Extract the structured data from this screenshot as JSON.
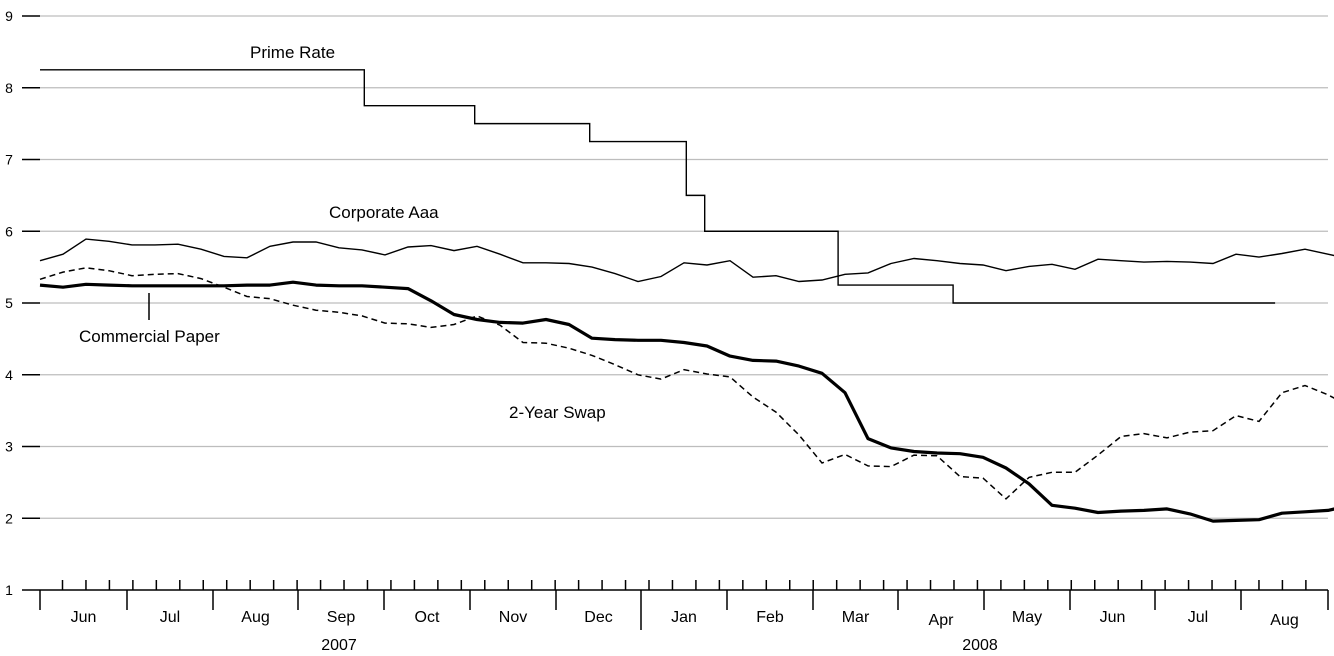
{
  "chart_data": {
    "type": "line",
    "title": "",
    "xlabel": "",
    "ylabel": "",
    "ylim": [
      1,
      9
    ],
    "yticks": [
      "1",
      "2",
      "3",
      "4",
      "5",
      "6",
      "7",
      "8",
      "9"
    ],
    "grid": "horizontal",
    "x_unit": "weeks from 2007-05-25 (weekly observations)",
    "month_labels": [
      "Jun",
      "Jul",
      "Aug",
      "Sep",
      "Oct",
      "Nov",
      "Dec",
      "Jan",
      "Feb",
      "Mar",
      "Apr",
      "May",
      "Jun",
      "Jul",
      "Aug"
    ],
    "year_labels": [
      "2007",
      "2008"
    ],
    "annotations": {
      "prime": "Prime Rate",
      "corporate": "Corporate Aaa",
      "commercial": "Commercial Paper",
      "swap": "2-Year Swap"
    },
    "series": [
      {
        "name": "Prime Rate",
        "style": "solid-thin",
        "steps": [
          {
            "x": 0,
            "y": 8.25
          },
          {
            "x": 14.1,
            "y": 7.75
          },
          {
            "x": 18.9,
            "y": 7.5
          },
          {
            "x": 23.9,
            "y": 7.25
          },
          {
            "x": 28.1,
            "y": 6.5
          },
          {
            "x": 28.9,
            "y": 6.0
          },
          {
            "x": 34.7,
            "y": 5.25
          },
          {
            "x": 39.7,
            "y": 5.0
          }
        ],
        "end_x": 53.7
      },
      {
        "name": "Corporate Aaa",
        "style": "solid-thin",
        "values": [
          5.59,
          5.68,
          5.89,
          5.86,
          5.81,
          5.81,
          5.82,
          5.75,
          5.65,
          5.63,
          5.79,
          5.85,
          5.85,
          5.77,
          5.74,
          5.67,
          5.78,
          5.8,
          5.73,
          5.79,
          5.68,
          5.56,
          5.56,
          5.55,
          5.5,
          5.41,
          5.3,
          5.37,
          5.56,
          5.53,
          5.59,
          5.36,
          5.38,
          5.3,
          5.32,
          5.4,
          5.42,
          5.55,
          5.62,
          5.59,
          5.55,
          5.53,
          5.45,
          5.51,
          5.54,
          5.47,
          5.61,
          5.59,
          5.57,
          5.58,
          5.57,
          5.55,
          5.68,
          5.64,
          5.69,
          5.75,
          5.68,
          5.61,
          5.54,
          5.68,
          5.78,
          5.73,
          5.75,
          5.69,
          5.6,
          5.55
        ]
      },
      {
        "name": "Commercial Paper",
        "style": "solid-thick",
        "values": [
          5.25,
          5.22,
          5.26,
          5.25,
          5.24,
          5.24,
          5.24,
          5.24,
          5.24,
          5.25,
          5.25,
          5.29,
          5.25,
          5.24,
          5.24,
          5.22,
          5.2,
          5.03,
          4.84,
          4.77,
          4.73,
          4.72,
          4.77,
          4.7,
          4.51,
          4.49,
          4.48,
          4.48,
          4.45,
          4.4,
          4.26,
          4.2,
          4.19,
          4.12,
          4.02,
          3.75,
          3.11,
          2.98,
          2.93,
          2.91,
          2.9,
          2.85,
          2.7,
          2.48,
          2.18,
          2.14,
          2.08,
          2.1,
          2.11,
          2.13,
          2.06,
          1.96,
          1.97,
          1.98,
          2.07,
          2.09,
          2.11,
          2.18,
          2.18,
          2.19,
          2.14,
          2.07,
          2.03,
          2.05,
          2.03,
          2.03,
          2.06,
          2.06
        ]
      },
      {
        "name": "2-Year Swap",
        "style": "dashed",
        "values": [
          5.33,
          5.43,
          5.49,
          5.45,
          5.38,
          5.4,
          5.41,
          5.34,
          5.22,
          5.09,
          5.06,
          4.97,
          4.9,
          4.87,
          4.82,
          4.72,
          4.71,
          4.66,
          4.7,
          4.82,
          4.69,
          4.45,
          4.44,
          4.37,
          4.27,
          4.14,
          4.0,
          3.94,
          4.07,
          4.01,
          3.97,
          3.69,
          3.48,
          3.16,
          2.77,
          2.89,
          2.73,
          2.72,
          2.88,
          2.87,
          2.58,
          2.56,
          2.27,
          2.57,
          2.64,
          2.64,
          2.88,
          3.14,
          3.18,
          3.12,
          3.2,
          3.22,
          3.43,
          3.35,
          3.75,
          3.85,
          3.72,
          3.55,
          3.41,
          3.4,
          3.66,
          3.48,
          3.45,
          3.4,
          3.35,
          3.35
        ]
      }
    ]
  }
}
